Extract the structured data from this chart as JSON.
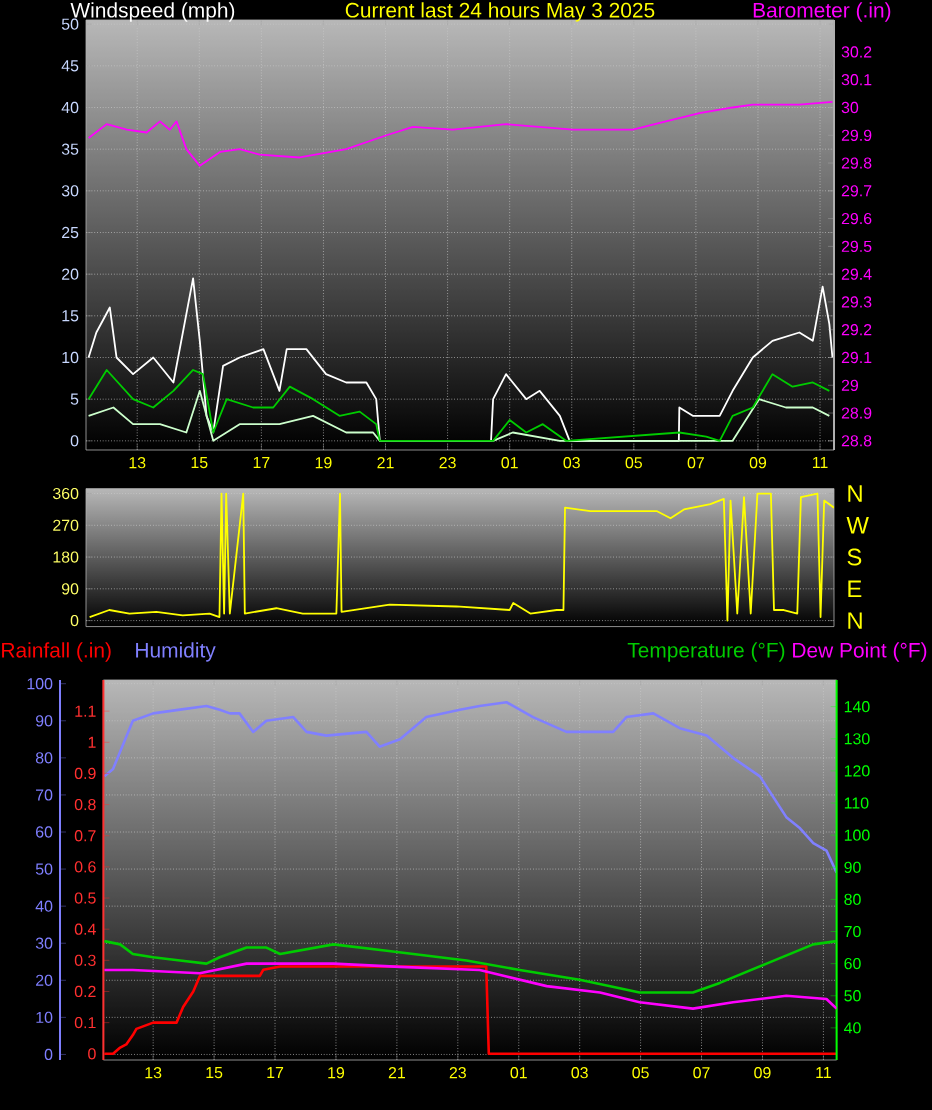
{
  "chart_data": [
    {
      "type": "line",
      "title": "Current last 24 hours May 3 2025",
      "ylabel": "Windspeed (mph)",
      "y2label": "Barometer (.in)",
      "xlim": [
        "2025-05-02T11:21",
        "2025-05-03T11:27"
      ],
      "xticks": [
        {
          "value": "2025-05-02T13:00",
          "label": "13"
        },
        {
          "value": "2025-05-02T15:00",
          "label": "15"
        },
        {
          "value": "2025-05-02T17:00",
          "label": "17"
        },
        {
          "value": "2025-05-02T19:00",
          "label": "19"
        },
        {
          "value": "2025-05-02T21:00",
          "label": "21"
        },
        {
          "value": "2025-05-02T23:00",
          "label": "23"
        },
        {
          "value": "2025-05-03T01:00",
          "label": "01"
        },
        {
          "value": "2025-05-03T03:00",
          "label": "03"
        },
        {
          "value": "2025-05-03T05:00",
          "label": "05"
        },
        {
          "value": "2025-05-03T07:00",
          "label": "07"
        },
        {
          "value": "2025-05-03T09:00",
          "label": "09"
        },
        {
          "value": "2025-05-03T11:00",
          "label": "11"
        }
      ],
      "ylim": [
        -1.1,
        50.5
      ],
      "yticks": [
        0,
        5,
        10,
        15,
        20,
        25,
        30,
        35,
        40,
        45,
        50
      ],
      "y2lim": [
        28.767,
        30.315
      ],
      "y2ticks": [
        28.8,
        28.9,
        29,
        29.1,
        29.2,
        29.3,
        29.4,
        29.5,
        29.6,
        29.7,
        29.8,
        29.9,
        30,
        30.1,
        30.2
      ],
      "grid": true,
      "series": [
        {
          "color": "#ffffff",
          "x": [
            "2025-05-02T11:26",
            "2025-05-02T11:41",
            "2025-05-02T12:07",
            "2025-05-02T12:20",
            "2025-05-02T12:52",
            "2025-05-02T13:31",
            "2025-05-02T14:10",
            "2025-05-02T14:48",
            "2025-05-02T15:01",
            "2025-05-02T15:14",
            "2025-05-02T15:27",
            "2025-05-02T15:46",
            "2025-05-02T16:18",
            "2025-05-02T17:04",
            "2025-05-02T17:35",
            "2025-05-02T17:49",
            "2025-05-02T18:27",
            "2025-05-02T19:05",
            "2025-05-02T19:44",
            "2025-05-02T20:23",
            "2025-05-02T20:42",
            "2025-05-02T20:49",
            "2025-05-03T00:24",
            "2025-05-03T00:28",
            "2025-05-03T00:53",
            "2025-05-03T01:32",
            "2025-05-03T01:58",
            "2025-05-03T02:37",
            "2025-05-03T02:56",
            "2025-05-03T06:27",
            "2025-05-03T06:28",
            "2025-05-03T06:54",
            "2025-05-03T07:46",
            "2025-05-03T08:11",
            "2025-05-03T08:50",
            "2025-05-03T09:28",
            "2025-05-03T10:20",
            "2025-05-03T10:46",
            "2025-05-03T11:05",
            "2025-05-03T11:18",
            "2025-05-03T11:24"
          ],
          "values": [
            10,
            13,
            16,
            10,
            8,
            10,
            7,
            19.5,
            12,
            3,
            1,
            9,
            10,
            11,
            6,
            11,
            11,
            8,
            7,
            7,
            5,
            0,
            0,
            5,
            8,
            5,
            6,
            3,
            0,
            0,
            4,
            3,
            3,
            6,
            10,
            12,
            13,
            12,
            18.5,
            14,
            10
          ]
        },
        {
          "color": "#ccffcc",
          "x": [
            "2025-05-02T11:26",
            "2025-05-02T12:14",
            "2025-05-02T12:52",
            "2025-05-02T13:44",
            "2025-05-02T14:35",
            "2025-05-02T15:01",
            "2025-05-02T15:27",
            "2025-05-02T16:18",
            "2025-05-02T17:35",
            "2025-05-02T18:40",
            "2025-05-02T19:44",
            "2025-05-02T20:36",
            "2025-05-02T20:49",
            "2025-05-03T00:28",
            "2025-05-03T01:06",
            "2025-05-03T02:37",
            "2025-05-03T06:28",
            "2025-05-03T08:11",
            "2025-05-03T09:02",
            "2025-05-03T09:54",
            "2025-05-03T10:46",
            "2025-05-03T11:18"
          ],
          "values": [
            3,
            4,
            2,
            2,
            1,
            6,
            0,
            2,
            2,
            3,
            1,
            1,
            0,
            0,
            1,
            0,
            0,
            0,
            5,
            4,
            4,
            3
          ]
        },
        {
          "color": "#00cc00",
          "x": [
            "2025-05-02T11:26",
            "2025-05-02T12:01",
            "2025-05-02T12:52",
            "2025-05-02T13:31",
            "2025-05-02T14:10",
            "2025-05-02T14:48",
            "2025-05-02T15:07",
            "2025-05-02T15:27",
            "2025-05-02T15:53",
            "2025-05-02T16:44",
            "2025-05-02T17:23",
            "2025-05-02T17:55",
            "2025-05-02T18:40",
            "2025-05-02T19:31",
            "2025-05-02T20:10",
            "2025-05-02T20:42",
            "2025-05-02T20:49",
            "2025-05-03T00:28",
            "2025-05-03T01:00",
            "2025-05-03T01:32",
            "2025-05-03T02:04",
            "2025-05-03T02:49",
            "2025-05-03T06:28",
            "2025-05-03T07:20",
            "2025-05-03T07:46",
            "2025-05-03T08:11",
            "2025-05-03T08:50",
            "2025-05-03T09:28",
            "2025-05-03T10:07",
            "2025-05-03T10:46",
            "2025-05-03T11:18"
          ],
          "values": [
            5,
            8.5,
            5,
            4,
            6,
            8.5,
            8,
            1,
            5,
            4,
            4,
            6.5,
            5,
            3,
            3.5,
            2,
            0,
            0,
            2.5,
            1,
            2,
            0,
            1,
            0.5,
            0,
            3,
            4,
            8,
            6.5,
            7,
            6
          ]
        },
        {
          "color": "#ff00ff",
          "axis": "y2",
          "x": [
            "2025-05-02T11:26",
            "2025-05-02T12:01",
            "2025-05-02T12:40",
            "2025-05-02T13:18",
            "2025-05-02T13:44",
            "2025-05-02T14:03",
            "2025-05-02T14:16",
            "2025-05-02T14:35",
            "2025-05-02T15:01",
            "2025-05-02T15:40",
            "2025-05-02T16:18",
            "2025-05-02T16:57",
            "2025-05-02T18:14",
            "2025-05-02T19:44",
            "2025-05-02T21:02",
            "2025-05-02T21:53",
            "2025-05-02T23:10",
            "2025-05-03T00:53",
            "2025-05-03T03:02",
            "2025-05-03T04:58",
            "2025-05-03T06:02",
            "2025-05-03T07:07",
            "2025-05-03T08:11",
            "2025-05-03T08:50",
            "2025-05-03T10:20",
            "2025-05-03T11:24"
          ],
          "values": [
            29.89,
            29.94,
            29.92,
            29.91,
            29.95,
            29.92,
            29.95,
            29.85,
            29.79,
            29.84,
            29.85,
            29.83,
            29.82,
            29.85,
            29.9,
            29.93,
            29.92,
            29.94,
            29.92,
            29.92,
            29.95,
            29.98,
            30.0,
            30.01,
            30.01,
            30.02
          ]
        }
      ]
    },
    {
      "type": "line",
      "xlim": [
        "2025-05-02T11:21",
        "2025-05-03T11:27"
      ],
      "ylim": [
        -17,
        374
      ],
      "yticks": [
        0,
        90,
        180,
        270,
        360
      ],
      "annotations": [
        "N",
        "W",
        "S",
        "E",
        "N"
      ],
      "grid": "y",
      "tick_labels": "y",
      "series": [
        {
          "color": "#ffff00",
          "x": [
            "2025-05-02T11:28",
            "2025-05-02T12:06",
            "2025-05-02T12:45",
            "2025-05-02T13:37",
            "2025-05-02T14:28",
            "2025-05-02T15:20",
            "2025-05-02T15:39",
            "2025-05-02T15:43",
            "2025-05-02T15:48",
            "2025-05-02T15:52",
            "2025-05-02T15:59",
            "2025-05-02T16:25",
            "2025-05-02T16:28",
            "2025-05-02T17:29",
            "2025-05-02T18:20",
            "2025-05-02T19:25",
            "2025-05-02T19:32",
            "2025-05-02T19:35",
            "2025-05-02T21:08",
            "2025-05-02T23:17",
            "2025-05-03T01:00",
            "2025-05-03T01:07",
            "2025-05-03T01:40",
            "2025-05-03T02:31",
            "2025-05-03T02:44",
            "2025-05-03T02:47",
            "2025-05-03T03:36",
            "2025-05-03T05:45",
            "2025-05-03T06:11",
            "2025-05-03T06:37",
            "2025-05-03T07:28",
            "2025-05-03T07:54",
            "2025-05-03T08:01",
            "2025-05-03T08:07",
            "2025-05-03T08:20",
            "2025-05-03T08:33",
            "2025-05-03T08:46",
            "2025-05-03T08:59",
            "2025-05-03T09:25",
            "2025-05-03T09:31",
            "2025-05-03T09:50",
            "2025-05-03T10:16",
            "2025-05-03T10:23",
            "2025-05-03T10:55",
            "2025-05-03T11:01",
            "2025-05-03T11:08",
            "2025-05-03T11:27"
          ],
          "values": [
            10,
            30,
            20,
            25,
            15,
            20,
            10,
            360,
            20,
            360,
            20,
            360,
            20,
            35,
            20,
            20,
            360,
            25,
            45,
            40,
            30,
            50,
            20,
            30,
            30,
            320,
            310,
            310,
            290,
            315,
            330,
            345,
            0,
            340,
            20,
            350,
            20,
            360,
            360,
            30,
            30,
            20,
            350,
            360,
            10,
            340,
            320
          ]
        }
      ]
    },
    {
      "type": "line",
      "xlim": [
        "2025-05-02T11:22",
        "2025-05-03T11:26"
      ],
      "xticks": [
        {
          "value": "2025-05-02T13:00",
          "label": "13"
        },
        {
          "value": "2025-05-02T15:00",
          "label": "15"
        },
        {
          "value": "2025-05-02T17:00",
          "label": "17"
        },
        {
          "value": "2025-05-02T19:00",
          "label": "19"
        },
        {
          "value": "2025-05-02T21:00",
          "label": "21"
        },
        {
          "value": "2025-05-02T23:00",
          "label": "23"
        },
        {
          "value": "2025-05-03T01:00",
          "label": "01"
        },
        {
          "value": "2025-05-03T03:00",
          "label": "03"
        },
        {
          "value": "2025-05-03T05:00",
          "label": "05"
        },
        {
          "value": "2025-05-03T07:00",
          "label": "07"
        },
        {
          "value": "2025-05-03T09:00",
          "label": "09"
        },
        {
          "value": "2025-05-03T11:00",
          "label": "11"
        }
      ],
      "ylim": [
        -1.5,
        101
      ],
      "yticks": [
        0,
        10,
        20,
        30,
        40,
        50,
        60,
        70,
        80,
        90,
        100
      ],
      "y3lim": [
        -0.02,
        1.2
      ],
      "y3ticks": [
        0,
        0.1,
        0.2,
        0.3,
        0.4,
        0.5,
        0.6,
        0.7,
        0.8,
        0.9,
        1,
        1.1
      ],
      "y2lim": [
        30,
        148.3
      ],
      "y2ticks": [
        40,
        50,
        60,
        70,
        80,
        90,
        100,
        110,
        120,
        130,
        140
      ],
      "grid": true,
      "series": [
        {
          "name": "Rainfall (.in)",
          "color": "#ff0000",
          "axis": "y3",
          "x": [
            "2025-05-02T11:24",
            "2025-05-02T11:41",
            "2025-05-02T11:55",
            "2025-05-02T12:07",
            "2025-05-02T12:20",
            "2025-05-02T12:27",
            "2025-05-02T13:00",
            "2025-05-02T13:46",
            "2025-05-02T13:59",
            "2025-05-02T14:19",
            "2025-05-02T14:32",
            "2025-05-02T16:30",
            "2025-05-02T16:37",
            "2025-05-02T17:10",
            "2025-05-02T23:56",
            "2025-05-03T00:01",
            "2025-05-03T11:26"
          ],
          "values": [
            0,
            0,
            0.02,
            0.03,
            0.06,
            0.08,
            0.1,
            0.1,
            0.15,
            0.2,
            0.25,
            0.25,
            0.27,
            0.28,
            0.28,
            0,
            0
          ]
        },
        {
          "name": "Humidity",
          "color": "#8080ff",
          "x": [
            "2025-05-02T11:24",
            "2025-05-02T11:41",
            "2025-05-02T12:20",
            "2025-05-02T13:00",
            "2025-05-02T13:53",
            "2025-05-02T14:45",
            "2025-05-02T15:11",
            "2025-05-02T15:31",
            "2025-05-02T15:50",
            "2025-05-02T16:17",
            "2025-05-02T16:43",
            "2025-05-02T17:36",
            "2025-05-02T18:02",
            "2025-05-02T18:41",
            "2025-05-02T20:00",
            "2025-05-02T20:26",
            "2025-05-02T21:06",
            "2025-05-02T21:58",
            "2025-05-02T23:04",
            "2025-05-02T23:43",
            "2025-05-03T00:36",
            "2025-05-03T01:28",
            "2025-05-03T02:34",
            "2025-05-03T04:06",
            "2025-05-03T04:32",
            "2025-05-03T05:25",
            "2025-05-03T06:17",
            "2025-05-03T07:10",
            "2025-05-03T08:02",
            "2025-05-03T08:55",
            "2025-05-03T09:47",
            "2025-05-03T10:14",
            "2025-05-03T10:40",
            "2025-05-03T11:06",
            "2025-05-03T11:26"
          ],
          "values": [
            75,
            77,
            90,
            92,
            93,
            94,
            93,
            92,
            92,
            87,
            90,
            91,
            87,
            86,
            87,
            83,
            85,
            91,
            93,
            94,
            95,
            91,
            87,
            87,
            91,
            92,
            88,
            86,
            80,
            75,
            64,
            61,
            57,
            55,
            49
          ]
        },
        {
          "name": "Temperature (°F)",
          "color": "#00cc00",
          "axis": "y2",
          "x": [
            "2025-05-02T11:24",
            "2025-05-02T11:55",
            "2025-05-02T12:20",
            "2025-05-02T13:00",
            "2025-05-02T13:53",
            "2025-05-02T14:45",
            "2025-05-02T15:11",
            "2025-05-02T16:04",
            "2025-05-02T16:43",
            "2025-05-02T17:10",
            "2025-05-02T18:55",
            "2025-05-02T20:40",
            "2025-05-02T23:17",
            "2025-05-03T01:02",
            "2025-05-03T03:00",
            "2025-05-03T04:58",
            "2025-05-03T06:43",
            "2025-05-03T07:36",
            "2025-05-03T09:08",
            "2025-05-03T10:40",
            "2025-05-03T11:26"
          ],
          "values": [
            67,
            66,
            63,
            62,
            61,
            60,
            62,
            65,
            65,
            63,
            66,
            64,
            61,
            58,
            55,
            51,
            51,
            54,
            60,
            66,
            67
          ]
        },
        {
          "name": "Dew Point (°F)",
          "color": "#ff00ff",
          "axis": "y2",
          "x": [
            "2025-05-02T11:24",
            "2025-05-02T12:20",
            "2025-05-02T14:32",
            "2025-05-02T16:04",
            "2025-05-02T18:55",
            "2025-05-02T21:06",
            "2025-05-02T23:43",
            "2025-05-03T00:36",
            "2025-05-03T01:55",
            "2025-05-03T03:40",
            "2025-05-03T04:58",
            "2025-05-03T06:43",
            "2025-05-03T08:02",
            "2025-05-03T09:47",
            "2025-05-03T11:06",
            "2025-05-03T11:26"
          ],
          "values": [
            58,
            58,
            57,
            60,
            60,
            59,
            58,
            56,
            53,
            51,
            48,
            46,
            48,
            50,
            49,
            46
          ]
        }
      ]
    }
  ]
}
